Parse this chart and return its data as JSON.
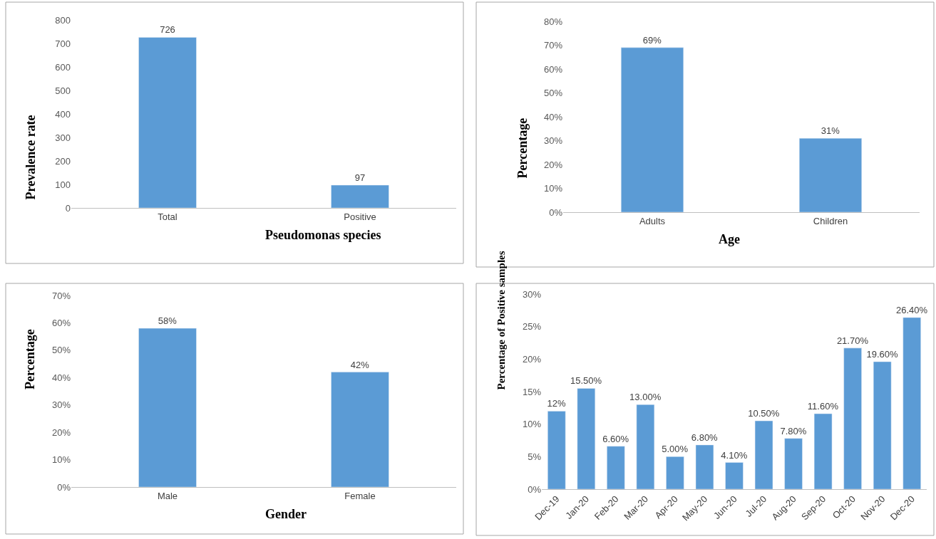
{
  "chart_data": [
    {
      "type": "bar",
      "xlabel": "Pseudomonas species",
      "ylabel": "Prevalence rate",
      "categories": [
        "Total",
        "Positive"
      ],
      "values": [
        726,
        97
      ],
      "color": "#5b9bd5",
      "ylim": [
        0,
        800
      ],
      "yticks": [
        0,
        100,
        200,
        300,
        400,
        500,
        600,
        700,
        800
      ],
      "data_labels": true
    },
    {
      "type": "bar",
      "xlabel": "Age",
      "ylabel": "Percentage",
      "categories": [
        "Adults",
        "Children"
      ],
      "values": [
        69,
        31
      ],
      "value_labels": [
        "69%",
        "31%"
      ],
      "color": "#5b9bd5",
      "ylim": [
        0,
        80
      ],
      "yticks": [
        {
          "value": 0,
          "label": "0%"
        },
        {
          "value": 10,
          "label": "10%"
        },
        {
          "value": 20,
          "label": "20%"
        },
        {
          "value": 30,
          "label": "30%"
        },
        {
          "value": 40,
          "label": "40%"
        },
        {
          "value": 50,
          "label": "50%"
        },
        {
          "value": 60,
          "label": "60%"
        },
        {
          "value": 70,
          "label": "70%"
        },
        {
          "value": 80,
          "label": "80%"
        }
      ]
    },
    {
      "type": "bar",
      "xlabel": "Gender",
      "ylabel": "Percentage",
      "categories": [
        "Male",
        "Female"
      ],
      "values": [
        58,
        42
      ],
      "value_labels": [
        "58%",
        "42%"
      ],
      "color": "#5b9bd5",
      "ylim": [
        0,
        70
      ],
      "yticks": [
        {
          "value": 0,
          "label": "0%"
        },
        {
          "value": 10,
          "label": "10%"
        },
        {
          "value": 20,
          "label": "20%"
        },
        {
          "value": 30,
          "label": "30%"
        },
        {
          "value": 40,
          "label": "40%"
        },
        {
          "value": 50,
          "label": "50%"
        },
        {
          "value": 60,
          "label": "60%"
        },
        {
          "value": 70,
          "label": "70%"
        }
      ]
    },
    {
      "type": "bar",
      "ylabel": "Percentage of Positive samples",
      "categories": [
        "Dec-19",
        "Jan-20",
        "Feb-20",
        "Mar-20",
        "Apr-20",
        "May-20",
        "Jun-20",
        "Jul-20",
        "Aug-20",
        "Sep-20",
        "Oct-20",
        "Nov-20",
        "Dec-20"
      ],
      "values": [
        12,
        15.5,
        6.6,
        13,
        5,
        6.8,
        4.1,
        10.5,
        7.8,
        11.6,
        21.7,
        19.6,
        26.4
      ],
      "value_labels": [
        "12%",
        "15.50%",
        "6.60%",
        "13.00%",
        "5.00%",
        "6.80%",
        "4.10%",
        "10.50%",
        "7.80%",
        "11.60%",
        "21.70%",
        "19.60%",
        "26.40%"
      ],
      "color": "#5b9bd5",
      "ylim": [
        0,
        30
      ],
      "yticks": [
        {
          "value": 0,
          "label": "0%"
        },
        {
          "value": 5,
          "label": "5%"
        },
        {
          "value": 10,
          "label": "10%"
        },
        {
          "value": 15,
          "label": "15%"
        },
        {
          "value": 20,
          "label": "20%"
        },
        {
          "value": 25,
          "label": "25%"
        },
        {
          "value": 30,
          "label": "30%"
        }
      ]
    }
  ]
}
